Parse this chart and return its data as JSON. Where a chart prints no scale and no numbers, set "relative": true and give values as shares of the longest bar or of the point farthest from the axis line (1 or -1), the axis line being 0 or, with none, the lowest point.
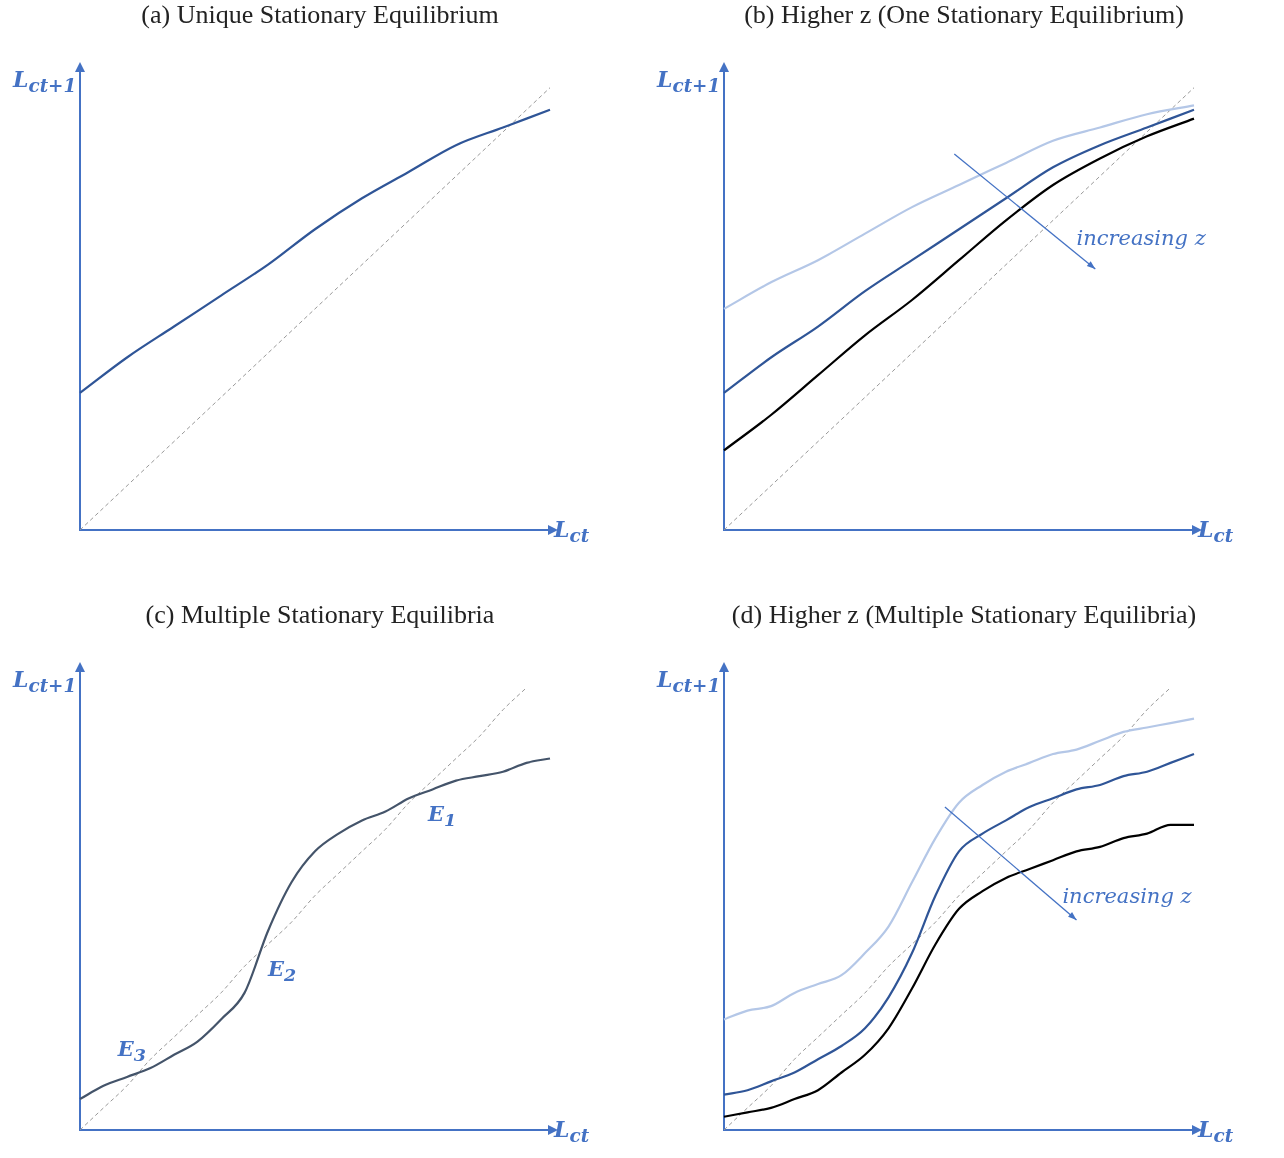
{
  "chart_data": [
    {
      "type": "line",
      "title": "(a) Unique Stationary Equilibrium",
      "xlabel": "L$_{ct}$",
      "ylabel": "L$_{ct+1}$",
      "relative": true,
      "grid": false,
      "legend": false,
      "tick_labels": false,
      "marker": "none",
      "categories": [
        null,
        null,
        null,
        null,
        null,
        null,
        null,
        null,
        null,
        null,
        null
      ],
      "series": [
        {
          "color": "#2f5597",
          "values": [
            0.31,
            0.39,
            0.46,
            0.53,
            0.6,
            0.68,
            0.75,
            0.81,
            0.87,
            0.91,
            0.95
          ]
        },
        {
          "color": "#999999",
          "line_style": "dashed",
          "values": [
            0,
            0.1,
            0.2,
            0.3,
            0.4,
            0.5,
            0.6,
            0.7,
            0.8,
            0.9,
            1.0
          ]
        }
      ]
    },
    {
      "type": "line",
      "title": "(b) Higher z (One Stationary Equilibrium)",
      "xlabel": "L$_{ct}$",
      "ylabel": "L$_{ct+1}$",
      "relative": true,
      "grid": false,
      "legend": false,
      "tick_labels": false,
      "marker": "none",
      "categories": [
        null,
        null,
        null,
        null,
        null,
        null,
        null,
        null,
        null,
        null,
        null
      ],
      "annotations": [
        "increasing z"
      ],
      "series": [
        {
          "color": "#b4c7e7",
          "values": [
            0.5,
            0.56,
            0.61,
            0.67,
            0.73,
            0.78,
            0.83,
            0.88,
            0.91,
            0.94,
            0.96
          ]
        },
        {
          "color": "#2f5597",
          "values": [
            0.31,
            0.39,
            0.46,
            0.54,
            0.61,
            0.68,
            0.75,
            0.82,
            0.87,
            0.91,
            0.95
          ]
        },
        {
          "color": "#000000",
          "values": [
            0.18,
            0.26,
            0.35,
            0.44,
            0.52,
            0.61,
            0.7,
            0.78,
            0.84,
            0.89,
            0.93
          ]
        },
        {
          "color": "#999999",
          "line_style": "dashed",
          "values": [
            0,
            0.1,
            0.2,
            0.3,
            0.4,
            0.5,
            0.6,
            0.7,
            0.8,
            0.9,
            1.0
          ]
        }
      ]
    },
    {
      "type": "line",
      "title": "(c) Multiple Stationary Equilibria",
      "xlabel": "L$_{ct}$",
      "ylabel": "L$_{ct+1}$",
      "relative": true,
      "grid": false,
      "legend": false,
      "tick_labels": false,
      "marker": "none",
      "categories": [
        null,
        null,
        null,
        null,
        null,
        null,
        null,
        null,
        null,
        null,
        null,
        null,
        null,
        null,
        null,
        null,
        null,
        null,
        null,
        null,
        null
      ],
      "annotations": [
        "E$_{1}$",
        "E$_{2}$",
        "E$_{3}$"
      ],
      "series": [
        {
          "color": "#44546a",
          "values": [
            0.07,
            0.1,
            0.12,
            0.14,
            0.17,
            0.2,
            0.25,
            0.31,
            0.45,
            0.56,
            0.63,
            0.67,
            0.7,
            0.72,
            0.75,
            0.77,
            0.79,
            0.8,
            0.81,
            0.83,
            0.84
          ]
        },
        {
          "color": "#999999",
          "line_style": "dashed",
          "values": [
            0,
            0.05,
            0.1,
            0.16,
            0.21,
            0.26,
            0.31,
            0.37,
            0.42,
            0.47,
            0.53,
            0.58,
            0.63,
            0.68,
            0.74,
            0.79,
            0.84,
            0.89,
            0.95,
            1.0,
            null
          ]
        }
      ]
    },
    {
      "type": "line",
      "title": "(d) Higher z (Multiple Stationary Equilibria)",
      "xlabel": "L$_{ct}$",
      "ylabel": "L$_{ct+1}$",
      "relative": true,
      "grid": false,
      "legend": false,
      "tick_labels": false,
      "marker": "none",
      "categories": [
        null,
        null,
        null,
        null,
        null,
        null,
        null,
        null,
        null,
        null,
        null,
        null,
        null,
        null,
        null,
        null,
        null,
        null,
        null,
        null,
        null
      ],
      "annotations": [
        "increasing z"
      ],
      "series": [
        {
          "color": "#b4c7e7",
          "values": [
            0.25,
            0.27,
            0.28,
            0.31,
            0.33,
            0.35,
            0.4,
            0.46,
            0.56,
            0.66,
            0.74,
            0.78,
            0.81,
            0.83,
            0.85,
            0.86,
            0.88,
            0.9,
            0.91,
            0.92,
            0.93
          ]
        },
        {
          "color": "#2f5597",
          "values": [
            0.08,
            0.09,
            0.11,
            0.13,
            0.16,
            0.19,
            0.23,
            0.3,
            0.4,
            0.53,
            0.63,
            0.67,
            0.7,
            0.73,
            0.75,
            0.77,
            0.78,
            0.8,
            0.81,
            0.83,
            0.85
          ]
        },
        {
          "color": "#000000",
          "values": [
            0.03,
            0.04,
            0.05,
            0.07,
            0.09,
            0.13,
            0.17,
            0.23,
            0.32,
            0.42,
            0.5,
            0.54,
            0.57,
            0.59,
            0.61,
            0.63,
            0.64,
            0.66,
            0.67,
            0.69,
            0.69
          ]
        },
        {
          "color": "#999999",
          "line_style": "dashed",
          "values": [
            0,
            0.05,
            0.1,
            0.16,
            0.21,
            0.26,
            0.31,
            0.37,
            0.42,
            0.47,
            0.53,
            0.58,
            0.63,
            0.68,
            0.74,
            0.79,
            0.84,
            0.89,
            0.95,
            1.0,
            null
          ]
        }
      ]
    }
  ]
}
